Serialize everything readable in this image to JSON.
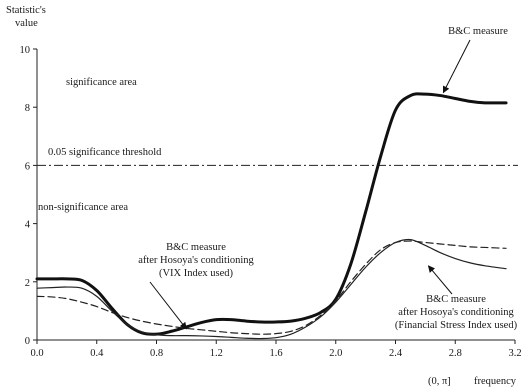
{
  "chart_data": {
    "type": "line",
    "ylabel_lines": [
      "Statistic's",
      "value"
    ],
    "xlabel": "frequency",
    "xlabel_range": "(0, π]",
    "xlim": [
      0.0,
      3.2
    ],
    "ylim": [
      0,
      10
    ],
    "x_ticks": [
      0.0,
      0.4,
      0.8,
      1.2,
      1.6,
      2.0,
      2.4,
      2.8,
      3.2
    ],
    "x_tick_labels": [
      "0.0",
      "0.4",
      "0.8",
      "1.2",
      "1.6",
      "2.0",
      "2.4",
      "2.8",
      "3.2"
    ],
    "y_ticks": [
      0,
      2,
      4,
      6,
      8,
      10
    ],
    "y_tick_labels": [
      "0",
      "2",
      "4",
      "6",
      "8",
      "10"
    ],
    "threshold": {
      "value": 6,
      "label": "0.05 significance threshold"
    },
    "regions": {
      "above": "significance area",
      "below": "non-significance area"
    },
    "series": [
      {
        "style": "bold",
        "x": [
          0.0,
          0.1,
          0.2,
          0.3,
          0.4,
          0.5,
          0.6,
          0.7,
          0.8,
          0.9,
          1.0,
          1.1,
          1.2,
          1.3,
          1.4,
          1.5,
          1.6,
          1.7,
          1.8,
          1.9,
          2.0,
          2.1,
          2.2,
          2.3,
          2.4,
          2.5,
          2.6,
          2.7,
          2.8,
          2.9,
          3.0,
          3.14
        ],
        "values": [
          2.1,
          2.1,
          2.1,
          2.05,
          1.7,
          1.1,
          0.55,
          0.25,
          0.2,
          0.3,
          0.45,
          0.6,
          0.7,
          0.7,
          0.65,
          0.62,
          0.62,
          0.65,
          0.75,
          0.95,
          1.4,
          2.6,
          4.4,
          6.3,
          7.9,
          8.4,
          8.45,
          8.4,
          8.3,
          8.2,
          8.15,
          8.15
        ]
      },
      {
        "style": "solid",
        "x": [
          0.0,
          0.1,
          0.2,
          0.3,
          0.4,
          0.5,
          0.6,
          0.7,
          0.8,
          0.9,
          1.0,
          1.1,
          1.2,
          1.3,
          1.4,
          1.5,
          1.6,
          1.7,
          1.8,
          1.9,
          2.0,
          2.1,
          2.2,
          2.3,
          2.4,
          2.5,
          2.6,
          2.7,
          2.8,
          2.9,
          3.0,
          3.14
        ],
        "values": [
          1.78,
          1.8,
          1.82,
          1.78,
          1.5,
          1.0,
          0.55,
          0.28,
          0.18,
          0.15,
          0.15,
          0.14,
          0.12,
          0.09,
          0.06,
          0.05,
          0.08,
          0.2,
          0.45,
          0.8,
          1.3,
          1.9,
          2.5,
          3.0,
          3.35,
          3.45,
          3.25,
          3.0,
          2.8,
          2.65,
          2.55,
          2.45
        ]
      },
      {
        "style": "dashed",
        "x": [
          0.0,
          0.1,
          0.2,
          0.3,
          0.4,
          0.5,
          0.6,
          0.7,
          0.8,
          0.9,
          1.0,
          1.1,
          1.2,
          1.3,
          1.4,
          1.5,
          1.6,
          1.7,
          1.8,
          1.9,
          2.0,
          2.1,
          2.2,
          2.3,
          2.4,
          2.5,
          2.6,
          2.7,
          2.8,
          2.9,
          3.0,
          3.14
        ],
        "values": [
          1.5,
          1.48,
          1.42,
          1.3,
          1.15,
          0.95,
          0.78,
          0.65,
          0.55,
          0.47,
          0.4,
          0.35,
          0.3,
          0.25,
          0.22,
          0.2,
          0.22,
          0.3,
          0.5,
          0.85,
          1.35,
          2.0,
          2.6,
          3.1,
          3.35,
          3.4,
          3.35,
          3.3,
          3.25,
          3.2,
          3.18,
          3.15
        ]
      }
    ],
    "annotations": [
      {
        "name": "annotation-bc-measure",
        "lines": [
          "B&C measure"
        ],
        "point_to": [
          2.72,
          8.5
        ]
      },
      {
        "name": "annotation-vix",
        "lines": [
          "B&C measure",
          "after Hosoya's conditioning",
          "(VIX Index used)"
        ],
        "point_to": [
          1.0,
          0.38
        ]
      },
      {
        "name": "annotation-fsi",
        "lines": [
          "B&C measure",
          "after Hosoya's conditioning",
          "(Financial Stress Index used)"
        ],
        "point_to": [
          2.62,
          2.55
        ]
      }
    ]
  }
}
